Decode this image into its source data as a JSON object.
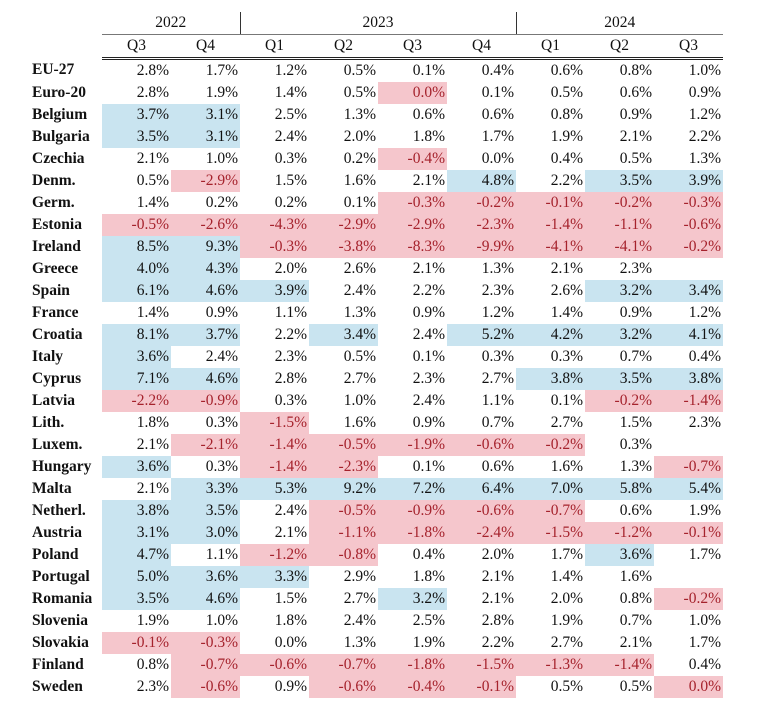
{
  "years": [
    {
      "label": "2022",
      "span": 2
    },
    {
      "label": "2023",
      "span": 4
    },
    {
      "label": "2024",
      "span": 3
    }
  ],
  "quarters": [
    "Q3",
    "Q4",
    "Q1",
    "Q2",
    "Q3",
    "Q4",
    "Q1",
    "Q2",
    "Q3"
  ],
  "colors": {
    "positive_highlight": "#c9e4f0",
    "negative_highlight": "#f5c6cc",
    "negative_text": "#a5222c"
  },
  "rows": [
    {
      "label": "EU-27",
      "values": [
        "2.8%",
        "1.7%",
        "1.2%",
        "0.5%",
        "0.1%",
        "0.4%",
        "0.6%",
        "0.8%",
        "1.0%"
      ],
      "highlight": "........."
    },
    {
      "label": "Euro-20",
      "values": [
        "2.8%",
        "1.9%",
        "1.4%",
        "0.5%",
        "0.0%",
        "0.1%",
        "0.5%",
        "0.6%",
        "0.9%"
      ],
      "highlight": "....r...."
    },
    {
      "label": "Belgium",
      "values": [
        "3.7%",
        "3.1%",
        "2.5%",
        "1.3%",
        "0.6%",
        "0.6%",
        "0.8%",
        "0.9%",
        "1.2%"
      ],
      "highlight": "bb......."
    },
    {
      "label": "Bulgaria",
      "values": [
        "3.5%",
        "3.1%",
        "2.4%",
        "2.0%",
        "1.8%",
        "1.7%",
        "1.9%",
        "2.1%",
        "2.2%"
      ],
      "highlight": "bb......."
    },
    {
      "label": "Czechia",
      "values": [
        "2.1%",
        "1.0%",
        "0.3%",
        "0.2%",
        "-0.4%",
        "0.0%",
        "0.4%",
        "0.5%",
        "1.3%"
      ],
      "highlight": "....r...."
    },
    {
      "label": "Denm.",
      "values": [
        "0.5%",
        "-2.9%",
        "1.5%",
        "1.6%",
        "2.1%",
        "4.8%",
        "2.2%",
        "3.5%",
        "3.9%"
      ],
      "highlight": ".r...b.bb"
    },
    {
      "label": "Germ.",
      "values": [
        "1.4%",
        "0.2%",
        "0.2%",
        "0.1%",
        "-0.3%",
        "-0.2%",
        "-0.1%",
        "-0.2%",
        "-0.3%"
      ],
      "highlight": "....rrrrr"
    },
    {
      "label": "Estonia",
      "values": [
        "-0.5%",
        "-2.6%",
        "-4.3%",
        "-2.9%",
        "-2.9%",
        "-2.3%",
        "-1.4%",
        "-1.1%",
        "-0.6%"
      ],
      "highlight": "rrrrrrrrr"
    },
    {
      "label": "Ireland",
      "values": [
        "8.5%",
        "9.3%",
        "-0.3%",
        "-3.8%",
        "-8.3%",
        "-9.9%",
        "-4.1%",
        "-4.1%",
        "-0.2%"
      ],
      "highlight": "bbrrrrrrr"
    },
    {
      "label": "Greece",
      "values": [
        "4.0%",
        "4.3%",
        "2.0%",
        "2.6%",
        "2.1%",
        "1.3%",
        "2.1%",
        "2.3%",
        ""
      ],
      "highlight": "bb......."
    },
    {
      "label": "Spain",
      "values": [
        "6.1%",
        "4.6%",
        "3.9%",
        "2.4%",
        "2.2%",
        "2.3%",
        "2.6%",
        "3.2%",
        "3.4%"
      ],
      "highlight": "bbb....bb"
    },
    {
      "label": "France",
      "values": [
        "1.4%",
        "0.9%",
        "1.1%",
        "1.3%",
        "0.9%",
        "1.2%",
        "1.4%",
        "0.9%",
        "1.2%"
      ],
      "highlight": "........."
    },
    {
      "label": "Croatia",
      "values": [
        "8.1%",
        "3.7%",
        "2.2%",
        "3.4%",
        "2.4%",
        "5.2%",
        "4.2%",
        "3.2%",
        "4.1%"
      ],
      "highlight": "bb.b.bbbb"
    },
    {
      "label": "Italy",
      "values": [
        "3.6%",
        "2.4%",
        "2.3%",
        "0.5%",
        "0.1%",
        "0.3%",
        "0.3%",
        "0.7%",
        "0.4%"
      ],
      "highlight": "b........"
    },
    {
      "label": "Cyprus",
      "values": [
        "7.1%",
        "4.6%",
        "2.8%",
        "2.7%",
        "2.3%",
        "2.7%",
        "3.8%",
        "3.5%",
        "3.8%"
      ],
      "highlight": "bb....bbb"
    },
    {
      "label": "Latvia",
      "values": [
        "-2.2%",
        "-0.9%",
        "0.3%",
        "1.0%",
        "2.4%",
        "1.1%",
        "0.1%",
        "-0.2%",
        "-1.4%"
      ],
      "highlight": "rr.....rr"
    },
    {
      "label": "Lith.",
      "values": [
        "1.8%",
        "0.3%",
        "-1.5%",
        "1.6%",
        "0.9%",
        "0.7%",
        "2.7%",
        "1.5%",
        "2.3%"
      ],
      "highlight": "..r......"
    },
    {
      "label": "Luxem.",
      "values": [
        "2.1%",
        "-2.1%",
        "-1.4%",
        "-0.5%",
        "-1.9%",
        "-0.6%",
        "-0.2%",
        "0.3%",
        ""
      ],
      "highlight": ".rrrrrr.."
    },
    {
      "label": "Hungary",
      "values": [
        "3.6%",
        "0.3%",
        "-1.4%",
        "-2.3%",
        "0.1%",
        "0.6%",
        "1.6%",
        "1.3%",
        "-0.7%"
      ],
      "highlight": "b.rr....r"
    },
    {
      "label": "Malta",
      "values": [
        "2.1%",
        "3.3%",
        "5.3%",
        "9.2%",
        "7.2%",
        "6.4%",
        "7.0%",
        "5.8%",
        "5.4%"
      ],
      "highlight": ".bbbbbbbb"
    },
    {
      "label": "Netherl.",
      "values": [
        "3.8%",
        "3.5%",
        "2.4%",
        "-0.5%",
        "-0.9%",
        "-0.6%",
        "-0.7%",
        "0.6%",
        "1.9%"
      ],
      "highlight": "bb.rrrr.."
    },
    {
      "label": "Austria",
      "values": [
        "3.1%",
        "3.0%",
        "2.1%",
        "-1.1%",
        "-1.8%",
        "-2.4%",
        "-1.5%",
        "-1.2%",
        "-0.1%"
      ],
      "highlight": "bb.rrrrrr"
    },
    {
      "label": "Poland",
      "values": [
        "4.7%",
        "1.1%",
        "-1.2%",
        "-0.8%",
        "0.4%",
        "2.0%",
        "1.7%",
        "3.6%",
        "1.7%"
      ],
      "highlight": "b.rr...b."
    },
    {
      "label": "Portugal",
      "values": [
        "5.0%",
        "3.6%",
        "3.3%",
        "2.9%",
        "1.8%",
        "2.1%",
        "1.4%",
        "1.6%",
        ""
      ],
      "highlight": "bbb......"
    },
    {
      "label": "Romania",
      "values": [
        "3.5%",
        "4.6%",
        "1.5%",
        "2.7%",
        "3.2%",
        "2.1%",
        "2.0%",
        "0.8%",
        "-0.2%"
      ],
      "highlight": "bb..b...r"
    },
    {
      "label": "Slovenia",
      "values": [
        "1.9%",
        "1.0%",
        "1.8%",
        "2.4%",
        "2.5%",
        "2.8%",
        "1.9%",
        "0.7%",
        "1.0%"
      ],
      "highlight": "........."
    },
    {
      "label": "Slovakia",
      "values": [
        "-0.1%",
        "-0.3%",
        "0.0%",
        "1.3%",
        "1.9%",
        "2.2%",
        "2.7%",
        "2.1%",
        "1.7%"
      ],
      "highlight": "rr......."
    },
    {
      "label": "Finland",
      "values": [
        "0.8%",
        "-0.7%",
        "-0.6%",
        "-0.7%",
        "-1.8%",
        "-1.5%",
        "-1.3%",
        "-1.4%",
        "0.4%"
      ],
      "highlight": ".rrrrrrr."
    },
    {
      "label": "Sweden",
      "values": [
        "2.3%",
        "-0.6%",
        "0.9%",
        "-0.6%",
        "-0.4%",
        "-0.1%",
        "0.5%",
        "0.5%",
        "0.0%"
      ],
      "highlight": ".r.rrr..r"
    }
  ]
}
